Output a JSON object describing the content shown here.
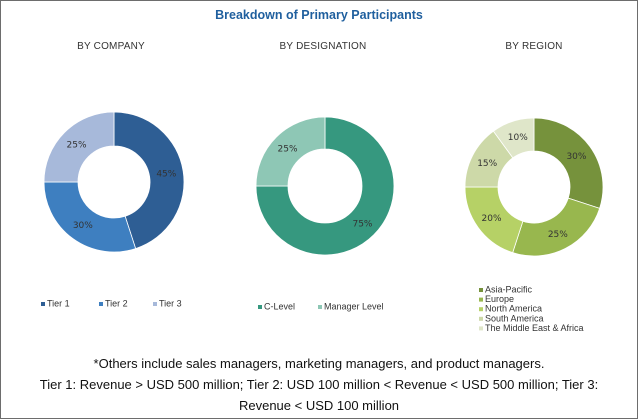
{
  "title": "Breakdown of Primary Participants",
  "chart_data": [
    {
      "type": "pie",
      "title": "BY COMPANY",
      "categories": [
        "Tier 1",
        "Tier 2",
        "Tier 3"
      ],
      "values": [
        45,
        30,
        25
      ],
      "labels": [
        "45%",
        "30%",
        "25%"
      ],
      "colors": [
        "#2e5e94",
        "#3e7fc0",
        "#a7b9da"
      ],
      "legend_position": "bottom"
    },
    {
      "type": "pie",
      "title": "BY DESIGNATION",
      "categories": [
        "C-Level",
        "Manager Level"
      ],
      "values": [
        75,
        25
      ],
      "labels": [
        "75%",
        "25%"
      ],
      "colors": [
        "#36987f",
        "#8ec7b5"
      ],
      "legend_position": "bottom"
    },
    {
      "type": "pie",
      "title": "BY REGION",
      "categories": [
        "Asia-Pacific",
        "Europe",
        "North America",
        "South America",
        "The Middle East & Africa"
      ],
      "values": [
        30,
        25,
        20,
        15,
        10
      ],
      "labels": [
        "30%",
        "25%",
        "20%",
        "15%",
        "10%"
      ],
      "colors": [
        "#76923c",
        "#98b74e",
        "#b6d166",
        "#cdd9a8",
        "#dfe6c9"
      ],
      "legend_position": "bottom"
    }
  ],
  "footnote": {
    "line1": "*Others include sales managers, marketing managers, and product managers.",
    "line2": "Tier 1: Revenue > USD 500 million; Tier 2: USD 100 million < Revenue < USD 500 million; Tier 3:",
    "line3": "Revenue < USD 100 million"
  }
}
